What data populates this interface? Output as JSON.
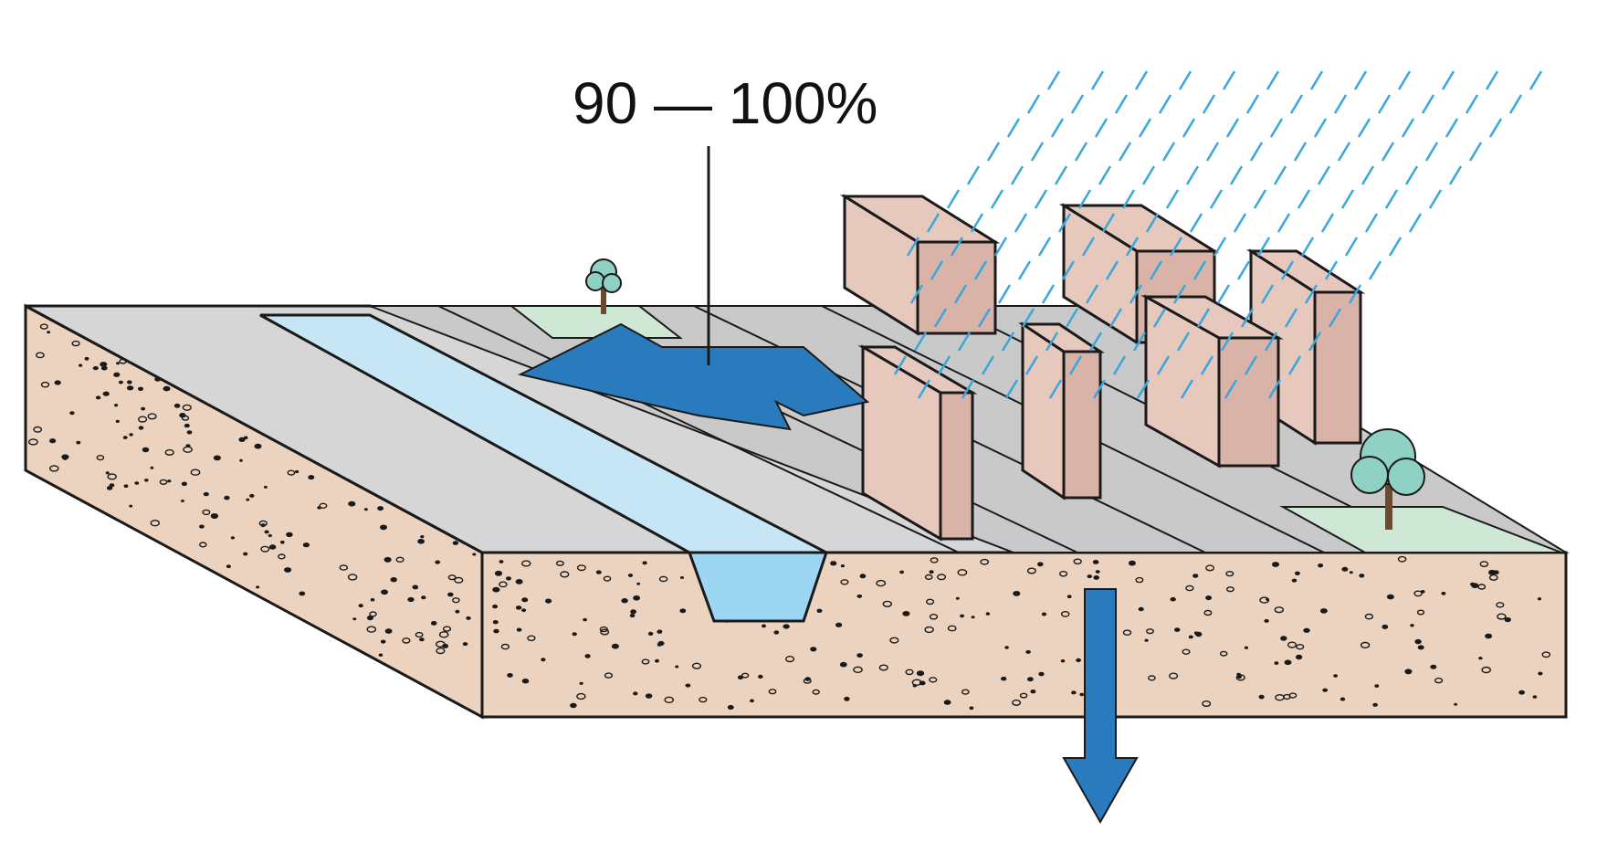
{
  "callout": {
    "runoff_label": "90 — 100%"
  },
  "colors": {
    "ground_top": "#d6d6d6",
    "ground_outline": "#1a1a1a",
    "soil": "#ecd3bf",
    "soil_dots": "#1a1a1a",
    "canal_water": "#c6e6f6",
    "canal_section_water": "#9dd6f3",
    "runoff_arrow": "#2a7bbd",
    "infiltration_arrow": "#2a7bbd",
    "rain": "#39a6dc",
    "building_face": "#e6c8bd",
    "building_side": "#d9b3a7",
    "grass": "#cfe8d6",
    "tree": "#8fd2c4",
    "tree_trunk": "#6b4a2f"
  },
  "icons": {
    "runoff": "runoff-arrow-icon",
    "infiltration": "infiltration-arrow-icon",
    "rain": "rain-icon",
    "tree": "tree-icon",
    "building": "building-icon"
  }
}
